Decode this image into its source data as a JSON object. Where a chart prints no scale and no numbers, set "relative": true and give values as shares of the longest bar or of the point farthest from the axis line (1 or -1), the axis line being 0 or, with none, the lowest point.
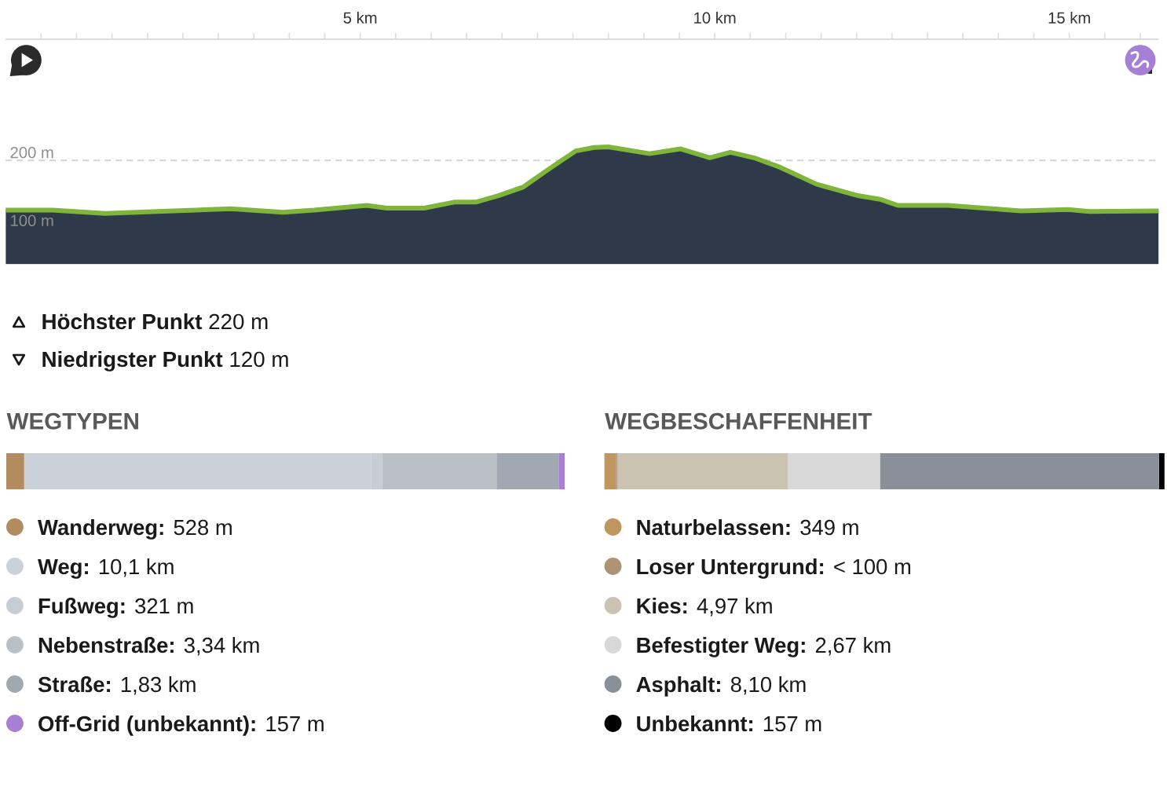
{
  "chart_data": [
    {
      "type": "area",
      "x": [
        0,
        0.66,
        1.4,
        2.14,
        3.17,
        3.91,
        4.35,
        5.09,
        5.38,
        5.9,
        6.34,
        6.64,
        6.94,
        7.3,
        7.67,
        8.04,
        8.3,
        8.5,
        9.08,
        9.52,
        9.93,
        10.22,
        10.55,
        10.92,
        11.44,
        12.03,
        12.33,
        12.58,
        13.29,
        13.8,
        14.32,
        14.98,
        15.28,
        16.26
      ],
      "xlim": [
        0,
        16.26
      ],
      "ylim": [
        48,
        378
      ],
      "xticks": [
        {
          "value": 0.5,
          "label": null
        },
        {
          "value": 1,
          "label": null
        },
        {
          "value": 1.5,
          "label": null
        },
        {
          "value": 2,
          "label": null
        },
        {
          "value": 2.5,
          "label": null
        },
        {
          "value": 3,
          "label": null
        },
        {
          "value": 3.5,
          "label": null
        },
        {
          "value": 4,
          "label": null
        },
        {
          "value": 4.5,
          "label": null
        },
        {
          "value": 5,
          "label": "5 km"
        },
        {
          "value": 5.5,
          "label": null
        },
        {
          "value": 6,
          "label": null
        },
        {
          "value": 6.5,
          "label": null
        },
        {
          "value": 7,
          "label": null
        },
        {
          "value": 7.5,
          "label": null
        },
        {
          "value": 8,
          "label": null
        },
        {
          "value": 8.5,
          "label": null
        },
        {
          "value": 9,
          "label": null
        },
        {
          "value": 9.5,
          "label": null
        },
        {
          "value": 10,
          "label": "10 km"
        },
        {
          "value": 10.5,
          "label": null
        },
        {
          "value": 11,
          "label": null
        },
        {
          "value": 11.5,
          "label": null
        },
        {
          "value": 12,
          "label": null
        },
        {
          "value": 12.5,
          "label": null
        },
        {
          "value": 13,
          "label": null
        },
        {
          "value": 13.5,
          "label": null
        },
        {
          "value": 14,
          "label": null
        },
        {
          "value": 14.5,
          "label": null
        },
        {
          "value": 15,
          "label": "15 km"
        },
        {
          "value": 15.5,
          "label": null
        },
        {
          "value": 16,
          "label": null
        }
      ],
      "yticks": [
        {
          "value": 100,
          "label": "100 m"
        },
        {
          "value": 200,
          "label": "200 m"
        }
      ],
      "grid": "y",
      "series": [
        {
          "color": "#2e394a",
          "values": [
            127,
            127,
            122,
            125,
            129,
            124,
            127,
            134,
            130,
            130,
            139,
            139,
            148,
            161,
            188,
            214,
            219,
            220,
            210,
            217,
            204,
            212,
            204,
            190,
            165,
            148,
            143,
            134,
            134,
            130,
            126,
            128,
            125,
            126
          ]
        }
      ],
      "annotations": [
        "**Höchster Punkt** 220 m",
        "**Niedrigster Punkt** 120 m"
      ]
    },
    {
      "type": "bar",
      "orientation": "horizontal",
      "stacked": true,
      "relative": true,
      "title": "WEGTYPEN",
      "categories": [
        null
      ],
      "legend": "bottom",
      "series": [
        {
          "name": "**Wanderweg:** 528 m",
          "color": "#b28c5f",
          "values": [
            0.032
          ]
        },
        {
          "name": "**Weg:** 10,1 km",
          "color": "#cbd1d8",
          "values": [
            0.621
          ]
        },
        {
          "name": "**Fußweg:** 321 m",
          "color": "#c7cdd4",
          "values": [
            0.02
          ]
        },
        {
          "name": "**Nebenstraße:** 3,34 km",
          "color": "#b9c0c6",
          "values": [
            0.205
          ]
        },
        {
          "name": "**Straße:** 1,83 km",
          "color": "#a0a8b1",
          "values": [
            0.112
          ]
        },
        {
          "name": "**Off-Grid (unbekannt):** 157 m",
          "color": "#a77fd5",
          "values": [
            0.01
          ]
        }
      ]
    },
    {
      "type": "bar",
      "orientation": "horizontal",
      "stacked": true,
      "relative": true,
      "title": "WEGBESCHAFFENHEIT",
      "categories": [
        null
      ],
      "legend": "bottom",
      "series": [
        {
          "name": "**Naturbelassen:** 349 m",
          "color": "#c09660",
          "values": [
            0.021
          ]
        },
        {
          "name": "**Loser Untergrund:** < 100 m",
          "color": "#ae9375",
          "values": [
            0.002
          ]
        },
        {
          "name": "**Kies:** 4,97 km",
          "color": "#cbc3b2",
          "values": [
            0.305
          ]
        },
        {
          "name": "**Befestigter Weg:** 2,67 km",
          "color": "#d8d8d8",
          "values": [
            0.164
          ]
        },
        {
          "name": "**Asphalt:** 8,10 km",
          "color": "#899099",
          "values": [
            0.498
          ]
        },
        {
          "name": "**Unbekannt:** 157 m",
          "color": "#000000",
          "values": [
            0.01
          ]
        }
      ]
    }
  ]
}
